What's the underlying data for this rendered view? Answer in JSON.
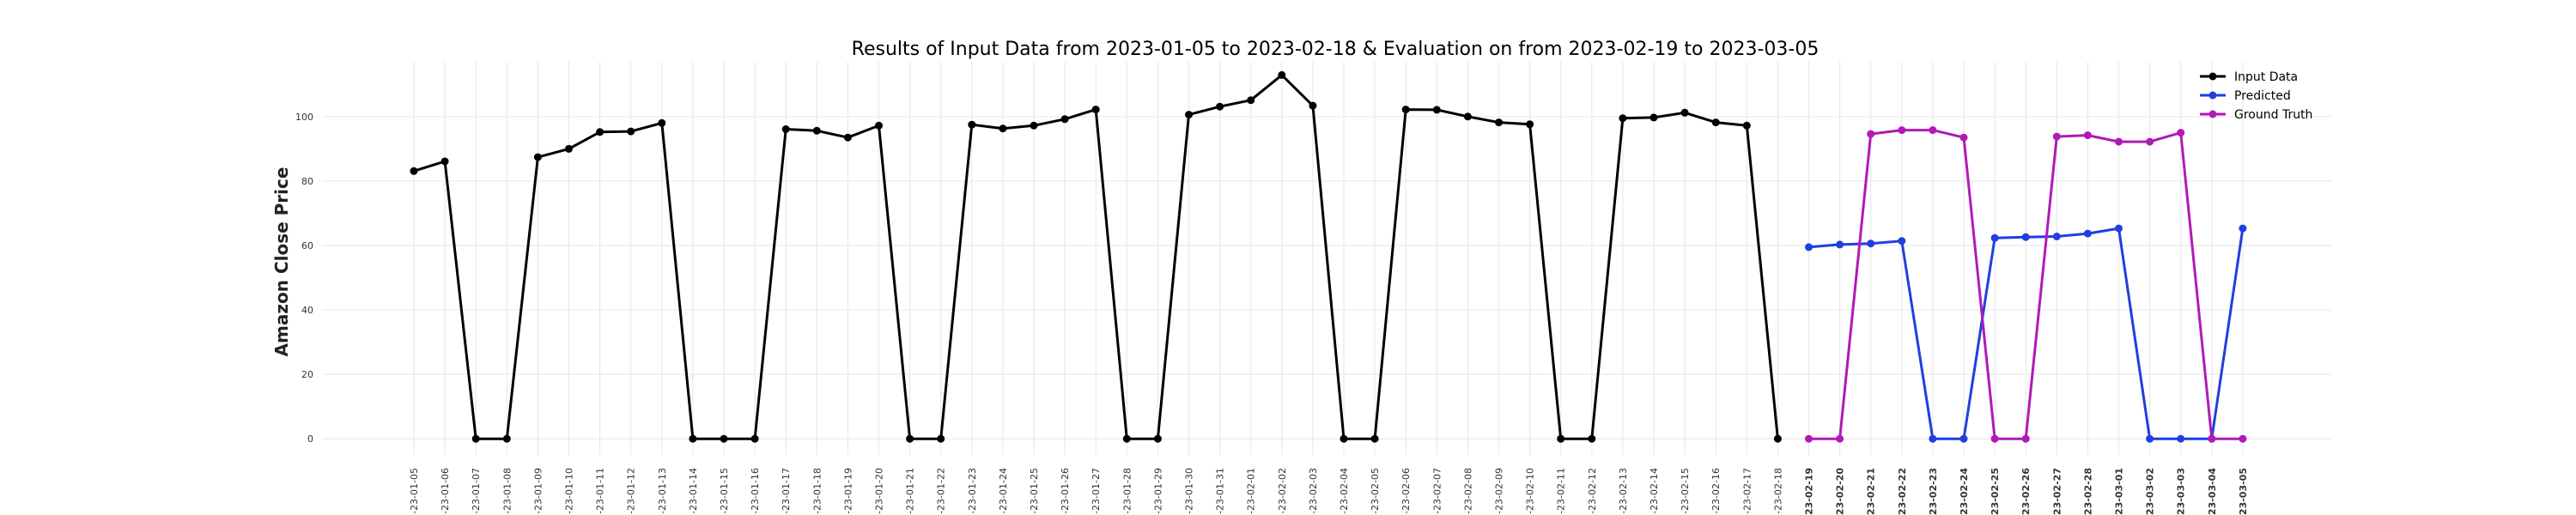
{
  "chart_data": {
    "type": "line",
    "title": "Results of Input Data from 2023-01-05 to 2023-02-18 & Evaluation on from 2023-02-19 to 2023-03-05",
    "xlabel": "",
    "ylabel": "Amazon Close Price",
    "ylim": [
      -5,
      117
    ],
    "yticks": [
      0,
      20,
      40,
      60,
      80,
      100
    ],
    "grid": true,
    "legend_position": "top-right",
    "x": [
      "2023-01-05",
      "2023-01-06",
      "2023-01-07",
      "2023-01-08",
      "2023-01-09",
      "2023-01-10",
      "2023-01-11",
      "2023-01-12",
      "2023-01-13",
      "2023-01-14",
      "2023-01-15",
      "2023-01-16",
      "2023-01-17",
      "2023-01-18",
      "2023-01-19",
      "2023-01-20",
      "2023-01-21",
      "2023-01-22",
      "2023-01-23",
      "2023-01-24",
      "2023-01-25",
      "2023-01-26",
      "2023-01-27",
      "2023-01-28",
      "2023-01-29",
      "2023-01-30",
      "2023-01-31",
      "2023-02-01",
      "2023-02-02",
      "2023-02-03",
      "2023-02-04",
      "2023-02-05",
      "2023-02-06",
      "2023-02-07",
      "2023-02-08",
      "2023-02-09",
      "2023-02-10",
      "2023-02-11",
      "2023-02-12",
      "2023-02-13",
      "2023-02-14",
      "2023-02-15",
      "2023-02-16",
      "2023-02-17",
      "2023-02-18",
      "2023-02-19",
      "2023-02-20",
      "2023-02-21",
      "2023-02-22",
      "2023-02-23",
      "2023-02-24",
      "2023-02-25",
      "2023-02-26",
      "2023-02-27",
      "2023-02-28",
      "2023-03-01",
      "2023-03-02",
      "2023-03-03",
      "2023-03-04",
      "2023-03-05"
    ],
    "xtick_labels": [
      "-23-01-05",
      "-23-01-06",
      "-23-01-07",
      "-23-01-08",
      "-23-01-09",
      "-23-01-10",
      "-23-01-11",
      "-23-01-12",
      "-23-01-13",
      "-23-01-14",
      "-23-01-15",
      "-23-01-16",
      "-23-01-17",
      "-23-01-18",
      "-23-01-19",
      "-23-01-20",
      "-23-01-21",
      "-23-01-22",
      "-23-01-23",
      "-23-01-24",
      "-23-01-25",
      "-23-01-26",
      "-23-01-27",
      "-23-01-28",
      "-23-01-29",
      "-23-01-30",
      "-23-01-31",
      "-23-02-01",
      "-23-02-02",
      "-23-02-03",
      "-23-02-04",
      "-23-02-05",
      "-23-02-06",
      "-23-02-07",
      "-23-02-08",
      "-23-02-09",
      "-23-02-10",
      "-23-02-11",
      "-23-02-12",
      "-23-02-13",
      "-23-02-14",
      "-23-02-15",
      "-23-02-16",
      "-23-02-17",
      "-23-02-18",
      "-23-02-19",
      "-23-02-20",
      "-23-02-21",
      "-23-02-22",
      "-23-02-23",
      "-23-02-24",
      "-23-02-25",
      "-23-02-26",
      "-23-02-27",
      "-23-02-28",
      "-23-03-01",
      "-23-03-02",
      "-23-03-03",
      "-23-03-04",
      "-23-03-05"
    ],
    "series": [
      {
        "name": "Input Data",
        "color": "#000000",
        "x": [
          "2023-01-05",
          "2023-01-06",
          "2023-01-07",
          "2023-01-08",
          "2023-01-09",
          "2023-01-10",
          "2023-01-11",
          "2023-01-12",
          "2023-01-13",
          "2023-01-14",
          "2023-01-15",
          "2023-01-16",
          "2023-01-17",
          "2023-01-18",
          "2023-01-19",
          "2023-01-20",
          "2023-01-21",
          "2023-01-22",
          "2023-01-23",
          "2023-01-24",
          "2023-01-25",
          "2023-01-26",
          "2023-01-27",
          "2023-01-28",
          "2023-01-29",
          "2023-01-30",
          "2023-01-31",
          "2023-02-01",
          "2023-02-02",
          "2023-02-03",
          "2023-02-04",
          "2023-02-05",
          "2023-02-06",
          "2023-02-07",
          "2023-02-08",
          "2023-02-09",
          "2023-02-10",
          "2023-02-11",
          "2023-02-12",
          "2023-02-13",
          "2023-02-14",
          "2023-02-15",
          "2023-02-16",
          "2023-02-17",
          "2023-02-18"
        ],
        "values": [
          83.1,
          86.1,
          0,
          0,
          87.4,
          90.0,
          95.2,
          95.4,
          98.0,
          0,
          0,
          0,
          96.1,
          95.6,
          93.5,
          97.2,
          0,
          0,
          97.5,
          96.3,
          97.2,
          99.2,
          102.2,
          0,
          0,
          100.6,
          103.1,
          105.1,
          112.9,
          103.4,
          0,
          0,
          102.2,
          102.1,
          100.0,
          98.2,
          97.6,
          0,
          0,
          99.5,
          99.7,
          101.2,
          98.2,
          97.2,
          0
        ]
      },
      {
        "name": "Predicted",
        "color": "#1f3fe0",
        "x": [
          "2023-02-19",
          "2023-02-20",
          "2023-02-21",
          "2023-02-22",
          "2023-02-23",
          "2023-02-24",
          "2023-02-25",
          "2023-02-26",
          "2023-02-27",
          "2023-02-28",
          "2023-03-01",
          "2023-03-02",
          "2023-03-03",
          "2023-03-04",
          "2023-03-05"
        ],
        "values": [
          59.5,
          60.3,
          60.6,
          61.4,
          0,
          0,
          62.3,
          62.6,
          62.8,
          63.7,
          65.3,
          0,
          0,
          0,
          65.3
        ]
      },
      {
        "name": "Ground Truth",
        "color": "#b01ab8",
        "x": [
          "2023-02-19",
          "2023-02-20",
          "2023-02-21",
          "2023-02-22",
          "2023-02-23",
          "2023-02-24",
          "2023-02-25",
          "2023-02-26",
          "2023-02-27",
          "2023-02-28",
          "2023-03-01",
          "2023-03-02",
          "2023-03-03",
          "2023-03-04",
          "2023-03-05"
        ],
        "values": [
          0,
          0,
          94.6,
          95.8,
          95.8,
          93.5,
          0,
          0,
          93.8,
          94.2,
          92.2,
          92.2,
          95.0,
          0,
          0
        ]
      }
    ]
  }
}
